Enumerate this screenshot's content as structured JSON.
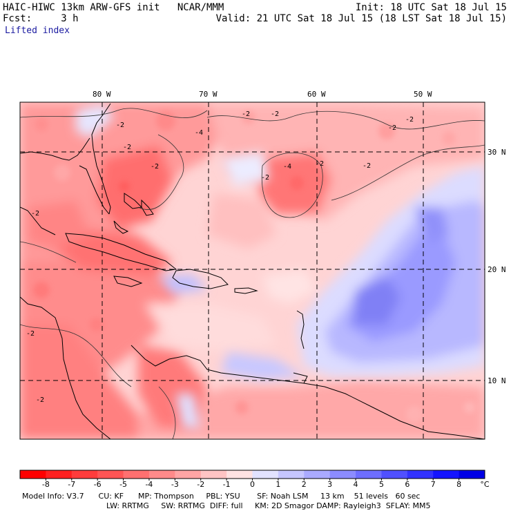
{
  "header": {
    "model_line": "HAIC-HIWC 13km ARW-GFS init   NCAR/MMM",
    "init_line": "Init: 18 UTC Sat 18 Jul 15",
    "fcst_line": "Fcst:     3 h",
    "valid_line": "Valid: 21 UTC Sat 18 Jul 15 (18 LST Sat 18 Jul 15)",
    "field_name": "Lifted index"
  },
  "map": {
    "lon_labels": [
      "80 W",
      "70 W",
      "60 W",
      "50 W"
    ],
    "lat_labels": [
      "30 N",
      "20 N",
      "10 N"
    ],
    "contour_labels": [
      "-2",
      "-2",
      "-4",
      "-2",
      "-2",
      "-2",
      "-2",
      "-2",
      "-4",
      "-2",
      "-2",
      "-2",
      "-2",
      "-2",
      "-2"
    ]
  },
  "colorbar": {
    "labels": [
      "-8",
      "-7",
      "-6",
      "-5",
      "-4",
      "-3",
      "-2",
      "-1",
      "0",
      "1",
      "2",
      "3",
      "4",
      "5",
      "6",
      "7",
      "8"
    ],
    "unit": "°C",
    "colors": [
      "#ff0000",
      "#ff2020",
      "#ff3c3c",
      "#ff5555",
      "#ff7070",
      "#ff8a8a",
      "#ffa5a5",
      "#ffc4c4",
      "#ffe2e2",
      "#e2e2ff",
      "#c6c6ff",
      "#aaaaff",
      "#8c8cff",
      "#6e6eff",
      "#5050ff",
      "#3232ff",
      "#1414ff",
      "#0000e6"
    ]
  },
  "footer": {
    "line1": "Model Info: V3.7      CU: KF      MP: Thompson     PBL: YSU       SF: Noah LSM     13 km    51 levels   60 sec",
    "line2": "LW: RRTMG     SW: RRTMG  DIFF: full     KM: 2D Smagor DAMP: Rayleigh3  SFLAY: MM5"
  },
  "colors": {
    "warm_strong": "#ff6e6e",
    "warm_mid": "#ffa0a0",
    "warm_light": "#ffd0d0",
    "cool_light": "#d6d6ff",
    "cool_mid": "#a8a8ff",
    "cool_strong": "#8080f8"
  }
}
